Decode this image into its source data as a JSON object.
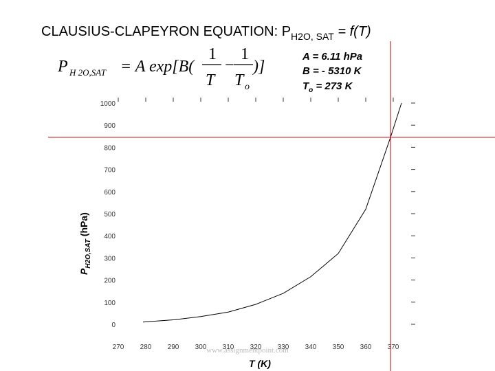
{
  "chart_data": {
    "type": "line",
    "title": {
      "main": "CLAUSIUS-CLAPEYRON EQUATION: P",
      "sub": "H2O, SAT",
      "end": " = f(T)"
    },
    "equation": {
      "p": "P",
      "p_sub": "H 2O,SAT",
      "mid": "= A exp[B(",
      "num1": "1",
      "den1": "T",
      "minus": "−",
      "num2": "1",
      "den2": "T",
      "den2_sub": "o",
      "end": ")]"
    },
    "parameters": [
      {
        "text": "A = 6.11 hPa"
      },
      {
        "text": "B = - 5310 K"
      },
      {
        "text": "T",
        "sub": "o",
        "end": " = 273 K"
      }
    ],
    "y_label": {
      "main": "P",
      "sub": "H2O,SAT",
      "end": " (hPa)"
    },
    "x_label": "T (K)",
    "watermark": "www.assignmentpoint.com",
    "series": [
      {
        "color": "#000000",
        "x": [
          279,
          290,
          300,
          310,
          320,
          330,
          340,
          350,
          360,
          369,
          373
        ],
        "values": [
          10,
          20,
          35,
          55,
          90,
          140,
          215,
          320,
          520,
          845,
          1000
        ]
      }
    ],
    "reference": {
      "x": 369,
      "y": 845,
      "color": "#c00000"
    },
    "xlim": [
      268,
      378
    ],
    "ylim": [
      0,
      1000
    ],
    "xticks": [
      270,
      280,
      290,
      300,
      310,
      320,
      330,
      340,
      350,
      360,
      370
    ],
    "yticks": [
      0,
      100,
      200,
      300,
      400,
      500,
      600,
      700,
      800,
      900,
      1000
    ]
  }
}
